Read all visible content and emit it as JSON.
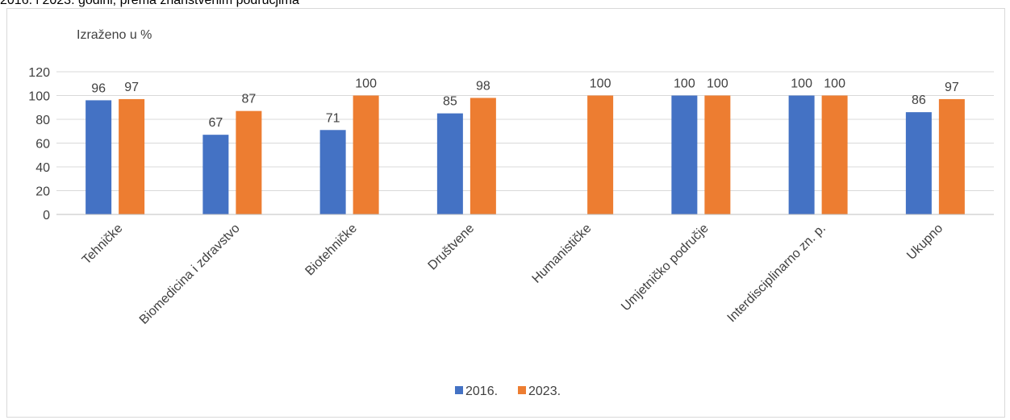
{
  "page": {
    "title": "2016. i 2023. godini, prema znanstvenim područjima"
  },
  "chart_data": {
    "type": "bar",
    "title": "",
    "ylabel": "Izraženo u %",
    "xlabel": "",
    "ylim": [
      0,
      120
    ],
    "yticks": [
      0,
      20,
      40,
      60,
      80,
      100,
      120
    ],
    "grid": true,
    "legend_position": "bottom",
    "categories": [
      "Tehničke",
      "Biomedicina i zdravstvo",
      "Biotehničke",
      "Društvene",
      "Humanističke",
      "Umjetničko područje",
      "Interdisciplinarno zn. p.",
      "Ukupno"
    ],
    "series": [
      {
        "name": "2016.",
        "color": "#4472c4",
        "values": [
          96,
          67,
          71,
          85,
          null,
          100,
          100,
          86
        ]
      },
      {
        "name": "2023.",
        "color": "#ed7d31",
        "values": [
          97,
          87,
          100,
          98,
          100,
          100,
          100,
          97
        ]
      }
    ]
  }
}
